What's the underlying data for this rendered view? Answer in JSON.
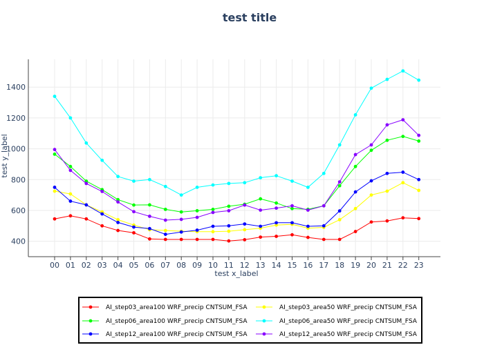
{
  "chart_data": {
    "type": "line",
    "title": "test title",
    "xlabel": "test x_label",
    "ylabel": "test y_label",
    "ylim": [
      300,
      1580
    ],
    "yticks": [
      400,
      600,
      800,
      1000,
      1200,
      1400
    ],
    "categories": [
      "00",
      "01",
      "02",
      "03",
      "04",
      "05",
      "06",
      "07",
      "08",
      "09",
      "10",
      "11",
      "12",
      "13",
      "14",
      "15",
      "16",
      "17",
      "18",
      "19",
      "20",
      "21",
      "22",
      "23"
    ],
    "grid": true,
    "legend_position": "bottom",
    "series": [
      {
        "name": "AI_step03_area100 WRF_precip CNTSUM_FSA",
        "color": "#ff0000",
        "values": [
          545,
          565,
          545,
          500,
          470,
          455,
          415,
          412,
          412,
          412,
          412,
          402,
          410,
          427,
          432,
          442,
          425,
          412,
          412,
          463,
          525,
          532,
          552,
          547
        ]
      },
      {
        "name": "AI_step03_area50 WRF_precip CNTSUM_FSA",
        "color": "#ffff00",
        "values": [
          725,
          707,
          636,
          590,
          540,
          505,
          475,
          470,
          465,
          462,
          462,
          465,
          475,
          485,
          505,
          510,
          485,
          490,
          540,
          612,
          700,
          725,
          780,
          730
        ]
      },
      {
        "name": "AI_step06_area100 WRF_precip CNTSUM_FSA",
        "color": "#00ff00",
        "values": [
          965,
          885,
          790,
          735,
          670,
          635,
          636,
          607,
          590,
          598,
          607,
          627,
          640,
          675,
          648,
          612,
          607,
          630,
          760,
          885,
          990,
          1055,
          1080,
          1050
        ]
      },
      {
        "name": "AI_step06_area50 WRF_precip CNTSUM_FSA",
        "color": "#00ffff",
        "values": [
          1340,
          1200,
          1037,
          925,
          820,
          790,
          800,
          755,
          700,
          750,
          765,
          775,
          780,
          812,
          825,
          790,
          750,
          840,
          1025,
          1220,
          1393,
          1450,
          1505,
          1445
        ]
      },
      {
        "name": "AI_step12_area100 WRF_precip CNTSUM_FSA",
        "color": "#0000ff",
        "values": [
          750,
          660,
          636,
          577,
          522,
          492,
          482,
          445,
          460,
          472,
          497,
          500,
          512,
          497,
          520,
          520,
          497,
          500,
          597,
          720,
          792,
          840,
          848,
          800
        ]
      },
      {
        "name": "AI_step12_area50 WRF_precip CNTSUM_FSA",
        "color": "#8800ff",
        "values": [
          995,
          860,
          775,
          723,
          655,
          592,
          562,
          537,
          542,
          555,
          587,
          598,
          635,
          602,
          615,
          630,
          602,
          630,
          785,
          962,
          1025,
          1155,
          1188,
          1087
        ]
      }
    ]
  }
}
